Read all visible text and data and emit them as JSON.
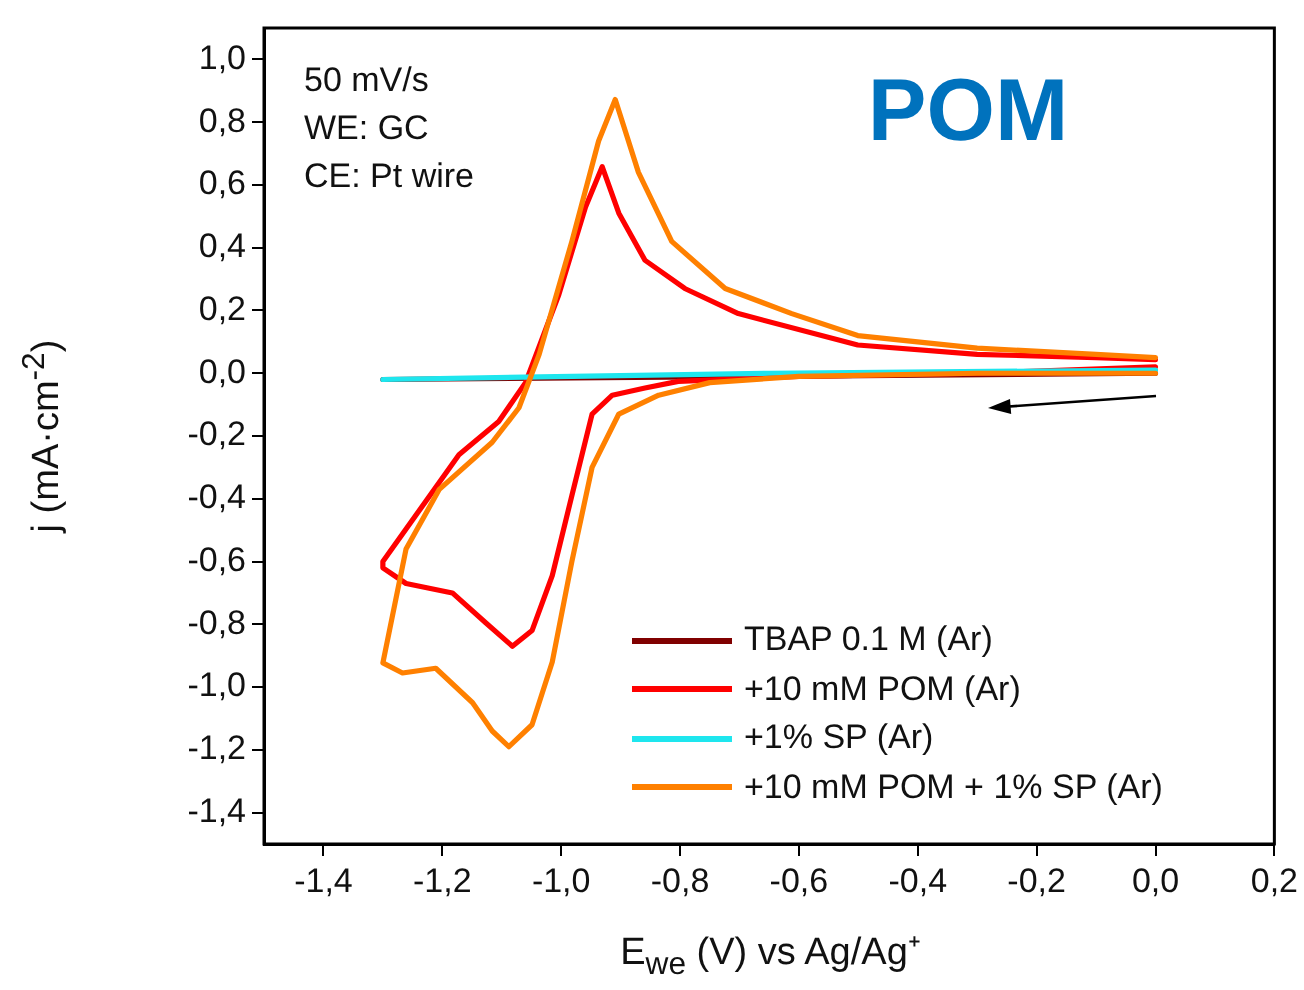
{
  "chart_data": {
    "type": "line",
    "xlabel": "E$_{we}$ (V) vs Ag/Ag⁺",
    "ylabel": "j (mA·cm$^{-2}$)",
    "xlim": [
      -1.5,
      0.2
    ],
    "ylim": [
      -1.5,
      1.1
    ],
    "xticks": [
      {
        "value": -1.4,
        "label": "-1,4"
      },
      {
        "value": -1.2,
        "label": "-1,2"
      },
      {
        "value": -1.0,
        "label": "-1,0"
      },
      {
        "value": -0.8,
        "label": "-0,8"
      },
      {
        "value": -0.6,
        "label": "-0,6"
      },
      {
        "value": -0.4,
        "label": "-0,4"
      },
      {
        "value": -0.2,
        "label": "-0,2"
      },
      {
        "value": 0,
        "label": "0,0"
      },
      {
        "value": 0.2,
        "label": "0,2"
      }
    ],
    "yticks": [
      {
        "value": -1.4,
        "label": "-1,4"
      },
      {
        "value": -1.2,
        "label": "-1,2"
      },
      {
        "value": -1.0,
        "label": "-1,0"
      },
      {
        "value": -0.8,
        "label": "-0,8"
      },
      {
        "value": -0.6,
        "label": "-0,6"
      },
      {
        "value": -0.4,
        "label": "-0,4"
      },
      {
        "value": -0.2,
        "label": "-0,2"
      },
      {
        "value": 0,
        "label": "0,0"
      },
      {
        "value": 0.2,
        "label": "0,2"
      },
      {
        "value": 0.4,
        "label": "0,4"
      },
      {
        "value": 0.6,
        "label": "0,6"
      },
      {
        "value": 0.8,
        "label": "0,8"
      },
      {
        "value": 1.0,
        "label": "1,0"
      }
    ],
    "legend": "bottom right",
    "annotations": [
      "50 mV/s",
      "WE: GC",
      "CE: Pt wire",
      "POM"
    ],
    "series": [
      {
        "name": "TBAP 0.1 M (Ar)",
        "color": "#800000",
        "x": [
          0,
          -0.65,
          -1.3
        ],
        "values": [
          0.0,
          -0.01,
          -0.02
        ]
      },
      {
        "name": "+10 mM POM (Ar)",
        "color": "#ff0000",
        "x": [
          0,
          -0.3,
          -0.6,
          -0.803,
          -0.859,
          -0.914,
          -0.948,
          -0.982,
          -1.015,
          -1.049,
          -1.082,
          -1.127,
          -1.183,
          -1.261,
          -1.3,
          -1.3,
          -1.172,
          -1.105,
          -1.06,
          -1.004,
          -0.959,
          -0.931,
          -0.903,
          -0.859,
          -0.792,
          -0.702,
          -0.501,
          -0.3,
          -0.1,
          0
        ],
        "values": [
          0.02,
          0.0,
          -0.01,
          -0.026,
          -0.047,
          -0.07,
          -0.13,
          -0.39,
          -0.645,
          -0.82,
          -0.87,
          -0.795,
          -0.7,
          -0.67,
          -0.62,
          -0.6,
          -0.26,
          -0.154,
          -0.03,
          0.25,
          0.53,
          0.658,
          0.51,
          0.36,
          0.27,
          0.19,
          0.09,
          0.06,
          0.05,
          0.043
        ]
      },
      {
        "name": "+1% SP (Ar)",
        "color": "#1ee6ee",
        "x": [
          0,
          -0.65,
          -1.3
        ],
        "values": [
          0.01,
          0.0,
          -0.02
        ]
      },
      {
        "name": "+10 mM POM + 1% SP (Ar)",
        "color": "#ff8000",
        "x": [
          0,
          -0.3,
          -0.6,
          -0.75,
          -0.836,
          -0.903,
          -0.948,
          -0.982,
          -1.015,
          -1.049,
          -1.088,
          -1.116,
          -1.149,
          -1.211,
          -1.267,
          -1.3,
          -1.261,
          -1.205,
          -1.116,
          -1.071,
          -1.037,
          -0.982,
          -0.937,
          -0.909,
          -0.87,
          -0.814,
          -0.724,
          -0.612,
          -0.501,
          -0.3,
          -0.1,
          0
        ],
        "values": [
          0.0,
          0.0,
          -0.01,
          -0.03,
          -0.07,
          -0.13,
          -0.3,
          -0.6,
          -0.92,
          -1.12,
          -1.19,
          -1.14,
          -1.05,
          -0.94,
          -0.955,
          -0.923,
          -0.56,
          -0.37,
          -0.22,
          -0.11,
          0.06,
          0.42,
          0.74,
          0.872,
          0.64,
          0.42,
          0.27,
          0.19,
          0.12,
          0.08,
          0.06,
          0.05
        ]
      }
    ]
  }
}
